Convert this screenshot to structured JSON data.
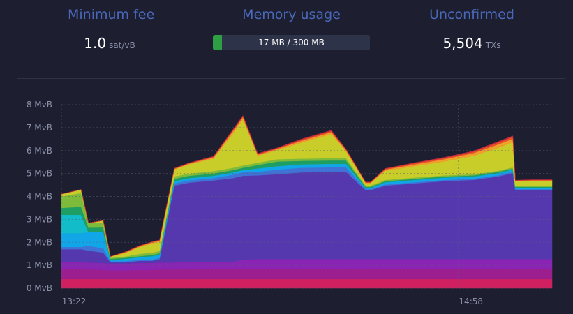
{
  "stats": {
    "min_fee": {
      "title": "Minimum fee",
      "value": "1.0",
      "unit": "sat/vB"
    },
    "memory": {
      "title": "Memory usage",
      "label": "17 MB / 300 MB",
      "used_mb": 17,
      "total_mb": 300,
      "fill_color": "#2ea043"
    },
    "unconfirmed": {
      "title": "Unconfirmed",
      "value": "5,504",
      "unit": "TXs"
    }
  },
  "chart_data": {
    "type": "area",
    "stacked": true,
    "ylabel": "",
    "y_ticks": [
      "0 MvB",
      "1 MvB",
      "2 MvB",
      "3 MvB",
      "4 MvB",
      "5 MvB",
      "6 MvB",
      "7 MvB",
      "8 MvB"
    ],
    "ylim": [
      0,
      8
    ],
    "x_ticks": [
      "13:22",
      "14:58"
    ],
    "grid": true,
    "t": [
      0,
      0.04,
      0.055,
      0.085,
      0.1,
      0.13,
      0.16,
      0.185,
      0.2,
      0.23,
      0.26,
      0.31,
      0.35,
      0.37,
      0.4,
      0.44,
      0.49,
      0.55,
      0.58,
      0.62,
      0.63,
      0.66,
      0.72,
      0.78,
      0.84,
      0.89,
      0.92,
      0.925,
      0.96,
      1.0
    ],
    "series": [
      {
        "color": "#d0205f",
        "values": [
          0.4,
          0.4,
          0.4,
          0.4,
          0.4,
          0.4,
          0.4,
          0.4,
          0.4,
          0.4,
          0.4,
          0.4,
          0.4,
          0.4,
          0.4,
          0.4,
          0.4,
          0.4,
          0.4,
          0.4,
          0.4,
          0.4,
          0.4,
          0.4,
          0.4,
          0.4,
          0.4,
          0.4,
          0.4,
          0.4
        ]
      },
      {
        "color": "#9b1f8f",
        "values": [
          0.45,
          0.45,
          0.42,
          0.4,
          0.38,
          0.38,
          0.4,
          0.4,
          0.42,
          0.42,
          0.45,
          0.45,
          0.45,
          0.45,
          0.45,
          0.45,
          0.45,
          0.45,
          0.45,
          0.45,
          0.45,
          0.45,
          0.45,
          0.45,
          0.45,
          0.45,
          0.45,
          0.45,
          0.45,
          0.45
        ]
      },
      {
        "color": "#8a24b4",
        "values": [
          0.3,
          0.3,
          0.3,
          0.3,
          0.3,
          0.3,
          0.3,
          0.3,
          0.3,
          0.3,
          0.3,
          0.3,
          0.3,
          0.4,
          0.42,
          0.42,
          0.42,
          0.42,
          0.42,
          0.42,
          0.42,
          0.42,
          0.42,
          0.42,
          0.42,
          0.42,
          0.42,
          0.42,
          0.42,
          0.42
        ]
      },
      {
        "color": "#5538ae",
        "values": [
          0.55,
          0.55,
          0.52,
          0.45,
          0.05,
          0.05,
          0.1,
          0.1,
          0.15,
          3.35,
          3.45,
          3.55,
          3.65,
          3.65,
          3.65,
          3.7,
          3.78,
          3.8,
          3.8,
          3.0,
          3.0,
          3.2,
          3.3,
          3.4,
          3.45,
          3.6,
          3.75,
          3.0,
          3.0,
          3.0
        ]
      },
      {
        "color": "#3f73d6",
        "values": [
          0.1,
          0.1,
          0.2,
          0.2,
          0.05,
          0.05,
          0.05,
          0.05,
          0.05,
          0.1,
          0.1,
          0.1,
          0.15,
          0.15,
          0.15,
          0.2,
          0.2,
          0.2,
          0.2,
          0.05,
          0.05,
          0.05,
          0.05,
          0.05,
          0.05,
          0.05,
          0.05,
          0.05,
          0.05,
          0.05
        ]
      },
      {
        "color": "#11a6e8",
        "values": [
          0.6,
          0.6,
          0.6,
          0.7,
          0.05,
          0.1,
          0.1,
          0.15,
          0.15,
          0.1,
          0.1,
          0.1,
          0.1,
          0.1,
          0.15,
          0.15,
          0.15,
          0.15,
          0.15,
          0.05,
          0.05,
          0.1,
          0.1,
          0.1,
          0.1,
          0.1,
          0.1,
          0.05,
          0.05,
          0.05
        ]
      },
      {
        "color": "#12bcc9",
        "values": [
          0.8,
          0.8,
          0.0,
          0.0,
          0.0,
          0.0,
          0.0,
          0.0,
          0.0,
          0.0,
          0.0,
          0.0,
          0.0,
          0.0,
          0.0,
          0.0,
          0.0,
          0.0,
          0.0,
          0.0,
          0.0,
          0.0,
          0.0,
          0.0,
          0.0,
          0.0,
          0.0,
          0.0,
          0.0,
          0.0
        ]
      },
      {
        "color": "#1e9e62",
        "values": [
          0.3,
          0.35,
          0.2,
          0.2,
          0.05,
          0.05,
          0.05,
          0.05,
          0.05,
          0.1,
          0.1,
          0.1,
          0.1,
          0.1,
          0.15,
          0.2,
          0.15,
          0.15,
          0.15,
          0.05,
          0.05,
          0.05,
          0.05,
          0.05,
          0.05,
          0.05,
          0.05,
          0.05,
          0.05,
          0.05
        ]
      },
      {
        "color": "#7fbb3a",
        "values": [
          0.5,
          0.6,
          0.2,
          0.2,
          0.05,
          0.05,
          0.1,
          0.1,
          0.1,
          0.1,
          0.1,
          0.1,
          0.1,
          0.1,
          0.1,
          0.1,
          0.1,
          0.1,
          0.1,
          0.05,
          0.05,
          0.05,
          0.05,
          0.05,
          0.05,
          0.05,
          0.05,
          0.05,
          0.05,
          0.05
        ]
      },
      {
        "color": "#c8cd2a",
        "values": [
          0.1,
          0.15,
          0.0,
          0.1,
          0.05,
          0.15,
          0.3,
          0.4,
          0.4,
          0.3,
          0.4,
          0.55,
          1.5,
          2.0,
          0.3,
          0.4,
          0.7,
          1.05,
          0.3,
          0.1,
          0.1,
          0.4,
          0.5,
          0.6,
          0.8,
          1.0,
          1.1,
          0.2,
          0.2,
          0.2
        ]
      },
      {
        "color": "#ef9f2a",
        "values": [
          0.0,
          0.0,
          0.0,
          0.0,
          0.0,
          0.03,
          0.03,
          0.05,
          0.05,
          0.03,
          0.03,
          0.05,
          0.1,
          0.1,
          0.05,
          0.05,
          0.08,
          0.08,
          0.05,
          0.03,
          0.03,
          0.05,
          0.08,
          0.1,
          0.12,
          0.15,
          0.15,
          0.02,
          0.03,
          0.03
        ]
      },
      {
        "color": "#e8502a",
        "values": [
          0.0,
          0.0,
          0.0,
          0.0,
          0.0,
          0.02,
          0.02,
          0.02,
          0.02,
          0.02,
          0.02,
          0.03,
          0.05,
          0.05,
          0.03,
          0.03,
          0.05,
          0.05,
          0.03,
          0.02,
          0.02,
          0.03,
          0.05,
          0.05,
          0.06,
          0.08,
          0.08,
          0.01,
          0.02,
          0.02
        ]
      },
      {
        "color": "#c52a3a",
        "values": [
          0.0,
          0.0,
          0.0,
          0.0,
          0.0,
          0.01,
          0.01,
          0.01,
          0.01,
          0.01,
          0.01,
          0.02,
          0.03,
          0.03,
          0.02,
          0.02,
          0.03,
          0.03,
          0.02,
          0.01,
          0.01,
          0.02,
          0.02,
          0.03,
          0.03,
          0.04,
          0.04,
          0.01,
          0.01,
          0.01
        ]
      }
    ]
  }
}
